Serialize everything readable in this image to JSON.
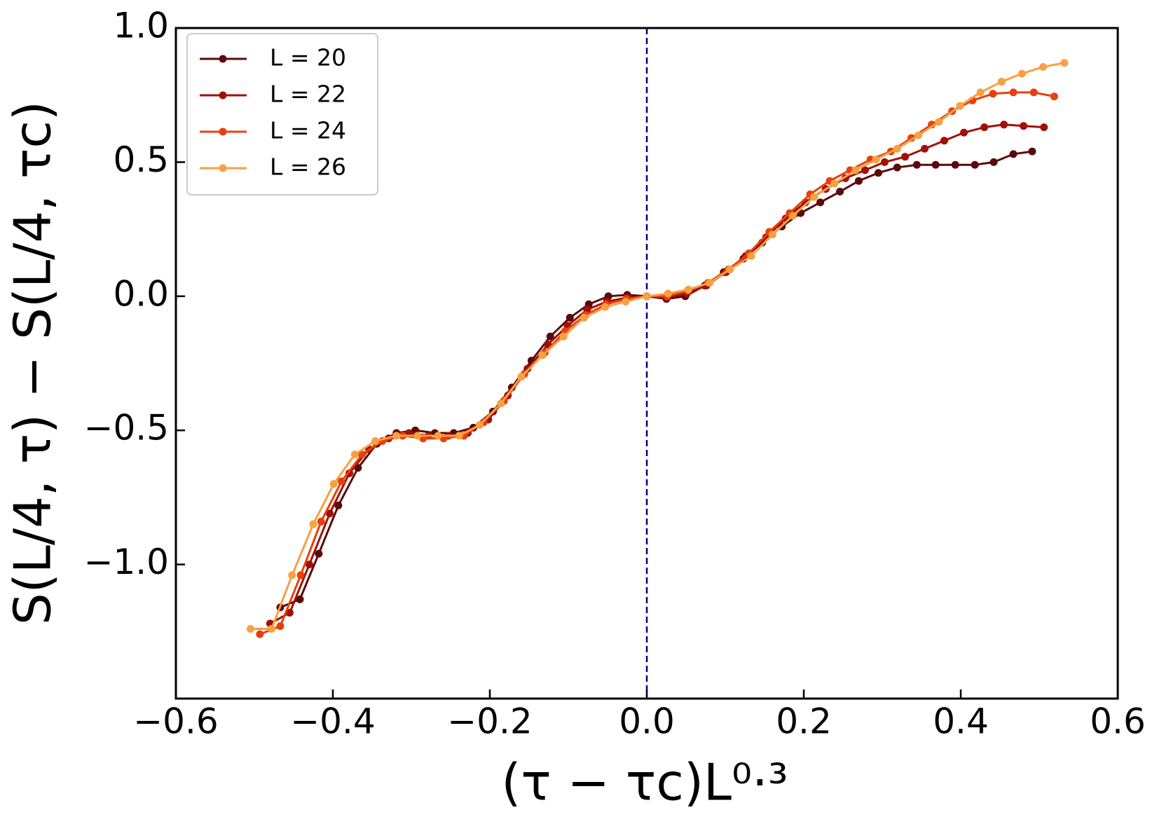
{
  "chart_data": {
    "type": "line",
    "xlabel": "(τ − τc)L⁰·³",
    "ylabel": "S(L/4, τ) − S(L/4, τc)",
    "xlim": [
      -0.6,
      0.6
    ],
    "ylim": [
      -1.5,
      1.0
    ],
    "xticks": [
      {
        "value": -0.6,
        "label": "−0.6"
      },
      {
        "value": -0.4,
        "label": "−0.4"
      },
      {
        "value": -0.2,
        "label": "−0.2"
      },
      {
        "value": 0,
        "label": "0.0"
      },
      0.2,
      0.4,
      0.6
    ],
    "yticks": [
      {
        "value": -1.0,
        "label": "−1.0"
      },
      {
        "value": -0.5,
        "label": "−0.5"
      },
      {
        "value": 0,
        "label": "0.0"
      },
      0.5,
      {
        "value": 1.0,
        "label": "1.0"
      }
    ],
    "vline": 0,
    "vline_color": "#00007f",
    "legend": "upper left",
    "series": [
      {
        "name": "L = 20",
        "color": "#5a0a0a",
        "x": [
          -0.467,
          -0.442,
          -0.418,
          -0.393,
          -0.368,
          -0.344,
          -0.319,
          -0.295,
          -0.27,
          -0.246,
          -0.221,
          -0.196,
          -0.172,
          -0.147,
          -0.123,
          -0.098,
          -0.074,
          -0.049,
          -0.025,
          0,
          0.025,
          0.049,
          0.074,
          0.098,
          0.123,
          0.147,
          0.172,
          0.196,
          0.221,
          0.246,
          0.27,
          0.295,
          0.319,
          0.344,
          0.368,
          0.393,
          0.418,
          0.442,
          0.467,
          0.491
        ],
        "values": [
          -1.16,
          -1.13,
          -0.96,
          -0.78,
          -0.64,
          -0.55,
          -0.51,
          -0.5,
          -0.51,
          -0.51,
          -0.49,
          -0.43,
          -0.34,
          -0.24,
          -0.15,
          -0.08,
          -0.03,
          0.0,
          0.005,
          0,
          -0.01,
          0.0,
          0.04,
          0.09,
          0.14,
          0.2,
          0.26,
          0.31,
          0.35,
          0.39,
          0.43,
          0.46,
          0.48,
          0.49,
          0.49,
          0.49,
          0.49,
          0.5,
          0.53,
          0.54
        ]
      },
      {
        "name": "L = 22",
        "color": "#a01008",
        "x": [
          -0.48,
          -0.455,
          -0.43,
          -0.404,
          -0.379,
          -0.354,
          -0.329,
          -0.303,
          -0.278,
          -0.253,
          -0.228,
          -0.202,
          -0.177,
          -0.152,
          -0.126,
          -0.101,
          -0.076,
          -0.051,
          -0.025,
          0,
          0.025,
          0.051,
          0.076,
          0.101,
          0.126,
          0.152,
          0.177,
          0.202,
          0.228,
          0.253,
          0.278,
          0.303,
          0.329,
          0.354,
          0.379,
          0.404,
          0.43,
          0.455,
          0.48,
          0.506
        ],
        "values": [
          -1.22,
          -1.18,
          -1.0,
          -0.81,
          -0.66,
          -0.57,
          -0.53,
          -0.51,
          -0.52,
          -0.52,
          -0.51,
          -0.46,
          -0.37,
          -0.27,
          -0.18,
          -0.11,
          -0.05,
          -0.02,
          -0.005,
          0,
          -0.005,
          0.01,
          0.04,
          0.09,
          0.15,
          0.22,
          0.29,
          0.35,
          0.4,
          0.44,
          0.47,
          0.5,
          0.52,
          0.55,
          0.58,
          0.61,
          0.63,
          0.64,
          0.635,
          0.63
        ]
      },
      {
        "name": "L = 24",
        "color": "#e8400c",
        "x": [
          -0.493,
          -0.467,
          -0.441,
          -0.415,
          -0.389,
          -0.363,
          -0.337,
          -0.311,
          -0.285,
          -0.259,
          -0.233,
          -0.208,
          -0.182,
          -0.156,
          -0.13,
          -0.104,
          -0.078,
          -0.052,
          -0.026,
          0,
          0.026,
          0.052,
          0.078,
          0.104,
          0.13,
          0.156,
          0.182,
          0.208,
          0.233,
          0.259,
          0.285,
          0.311,
          0.337,
          0.363,
          0.389,
          0.415,
          0.441,
          0.467,
          0.493,
          0.519
        ],
        "values": [
          -1.26,
          -1.23,
          -1.04,
          -0.84,
          -0.69,
          -0.59,
          -0.54,
          -0.52,
          -0.53,
          -0.53,
          -0.52,
          -0.47,
          -0.39,
          -0.29,
          -0.21,
          -0.13,
          -0.07,
          -0.03,
          -0.01,
          0,
          0.0,
          0.02,
          0.05,
          0.1,
          0.16,
          0.24,
          0.31,
          0.38,
          0.43,
          0.47,
          0.51,
          0.54,
          0.59,
          0.64,
          0.69,
          0.73,
          0.755,
          0.76,
          0.76,
          0.745
        ]
      },
      {
        "name": "L = 26",
        "color": "#f9a040",
        "x": [
          -0.505,
          -0.478,
          -0.452,
          -0.425,
          -0.399,
          -0.372,
          -0.346,
          -0.319,
          -0.292,
          -0.266,
          -0.239,
          -0.213,
          -0.186,
          -0.16,
          -0.133,
          -0.106,
          -0.08,
          -0.053,
          -0.027,
          0,
          0.027,
          0.053,
          0.08,
          0.106,
          0.133,
          0.16,
          0.186,
          0.213,
          0.239,
          0.266,
          0.292,
          0.319,
          0.346,
          0.372,
          0.399,
          0.425,
          0.452,
          0.478,
          0.505,
          0.532
        ],
        "values": [
          -1.24,
          -1.24,
          -1.04,
          -0.85,
          -0.7,
          -0.59,
          -0.54,
          -0.52,
          -0.52,
          -0.52,
          -0.52,
          -0.48,
          -0.4,
          -0.3,
          -0.22,
          -0.15,
          -0.08,
          -0.04,
          -0.02,
          0,
          0.01,
          0.025,
          0.05,
          0.1,
          0.15,
          0.23,
          0.3,
          0.37,
          0.42,
          0.47,
          0.51,
          0.55,
          0.6,
          0.65,
          0.71,
          0.76,
          0.8,
          0.83,
          0.855,
          0.87
        ]
      }
    ]
  }
}
